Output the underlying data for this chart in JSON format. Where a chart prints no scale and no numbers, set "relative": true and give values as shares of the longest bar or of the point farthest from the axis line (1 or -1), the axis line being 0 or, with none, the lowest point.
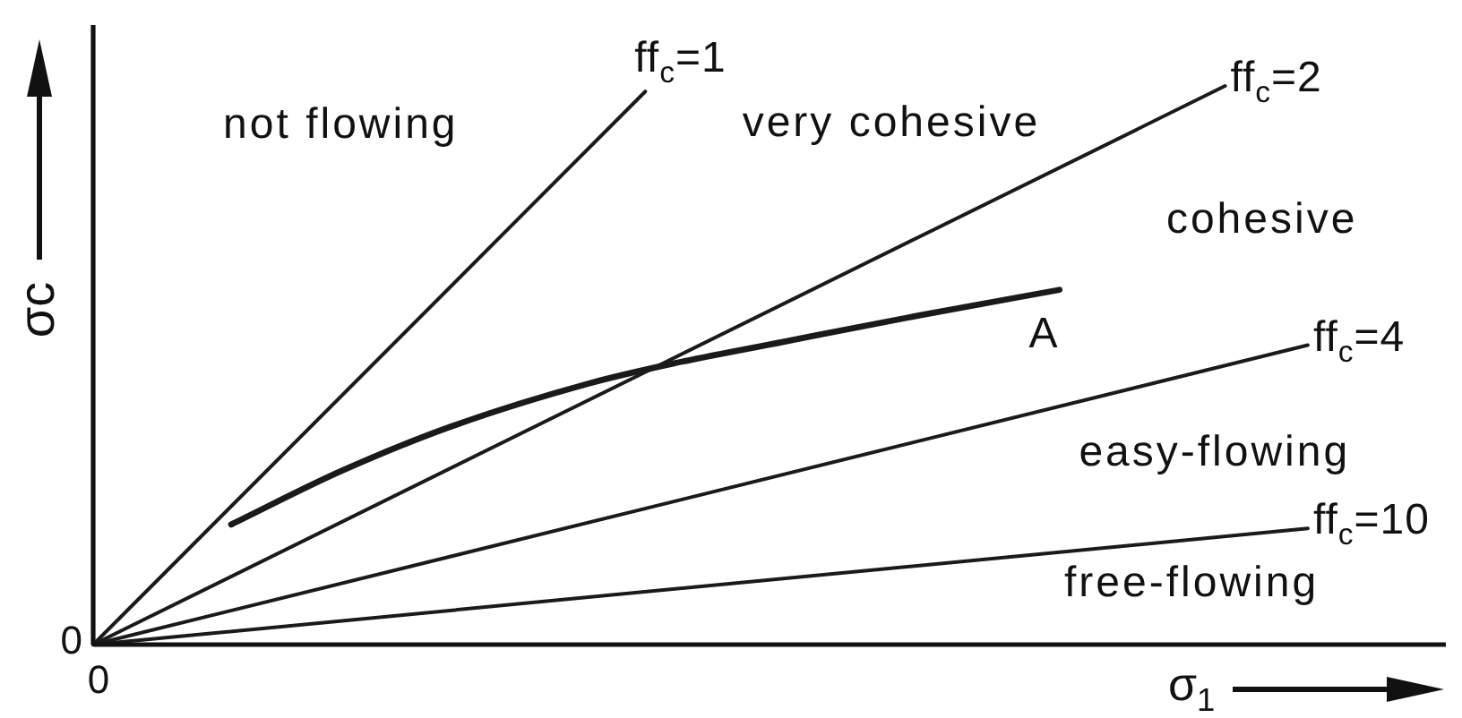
{
  "chart_data": {
    "type": "line",
    "relative": true,
    "marker": "none",
    "xlabel": "σ$_{1}$",
    "ylabel": "σc",
    "categories": [
      null,
      null,
      null,
      null,
      null,
      null,
      null,
      null,
      null,
      null,
      null,
      null,
      null,
      null,
      null,
      null,
      null,
      null,
      null,
      null,
      null,
      null,
      null,
      null,
      null,
      null,
      null,
      null,
      null,
      null,
      null,
      null,
      null,
      null,
      null,
      null,
      null,
      null,
      null,
      null,
      null,
      null,
      null,
      null,
      null,
      null,
      null,
      null,
      null,
      null
    ],
    "series": [
      {
        "name": "ff$_{c}$=1",
        "color": "#1a1a1a",
        "values": [
          0,
          null,
          null,
          null,
          null,
          null,
          null,
          null,
          null,
          null,
          null,
          null,
          null,
          null,
          null,
          null,
          null,
          null,
          null,
          null,
          0.99,
          null,
          null,
          null,
          null,
          null,
          null,
          null,
          null,
          null,
          null,
          null,
          null,
          null,
          null,
          null,
          null,
          null,
          null,
          null,
          null,
          null,
          null,
          null,
          null,
          null,
          null,
          null,
          null,
          null
        ]
      },
      {
        "name": "ff$_{c}$=2",
        "color": "#1a1a1a",
        "values": [
          0,
          null,
          null,
          null,
          null,
          null,
          null,
          null,
          null,
          null,
          null,
          null,
          null,
          null,
          null,
          null,
          null,
          null,
          null,
          null,
          null,
          null,
          null,
          null,
          null,
          null,
          null,
          null,
          null,
          null,
          null,
          null,
          null,
          null,
          null,
          null,
          null,
          null,
          null,
          null,
          null,
          1.0,
          null,
          null,
          null,
          null,
          null,
          null,
          null,
          null
        ]
      },
      {
        "name": "ff$_{c}$=4",
        "color": "#1a1a1a",
        "values": [
          0,
          null,
          null,
          null,
          null,
          null,
          null,
          null,
          null,
          null,
          null,
          null,
          null,
          null,
          null,
          null,
          null,
          null,
          null,
          null,
          null,
          null,
          null,
          null,
          null,
          null,
          null,
          null,
          null,
          null,
          null,
          null,
          null,
          null,
          null,
          null,
          null,
          null,
          null,
          null,
          null,
          null,
          null,
          null,
          0.536,
          null,
          null,
          null,
          null,
          null
        ]
      },
      {
        "name": "ff$_{c}$=10",
        "color": "#1a1a1a",
        "values": [
          0,
          null,
          null,
          null,
          null,
          null,
          null,
          null,
          null,
          null,
          null,
          null,
          null,
          null,
          null,
          null,
          null,
          null,
          null,
          null,
          null,
          null,
          null,
          null,
          null,
          null,
          null,
          null,
          null,
          null,
          null,
          null,
          null,
          null,
          null,
          null,
          null,
          null,
          null,
          null,
          null,
          null,
          null,
          null,
          0.208,
          null,
          null,
          null,
          null,
          null
        ]
      },
      {
        "name": "A",
        "color": "#1a1a1a",
        "values": [
          null,
          null,
          null,
          null,
          null,
          0.215,
          null,
          null,
          null,
          0.311,
          null,
          null,
          null,
          0.391,
          null,
          null,
          null,
          null,
          0.468,
          null,
          null,
          0.503,
          null,
          null,
          null,
          0.542,
          null,
          null,
          null,
          null,
          0.59,
          null,
          null,
          null,
          null,
          0.635,
          null,
          null,
          null,
          null,
          null,
          null,
          null,
          null,
          null,
          null,
          null,
          null,
          null,
          null
        ]
      }
    ],
    "annotations": [
      "0",
      "0",
      "not flowing",
      "very cohesive",
      "cohesive",
      "easy-flowing",
      "free-flowing"
    ]
  }
}
